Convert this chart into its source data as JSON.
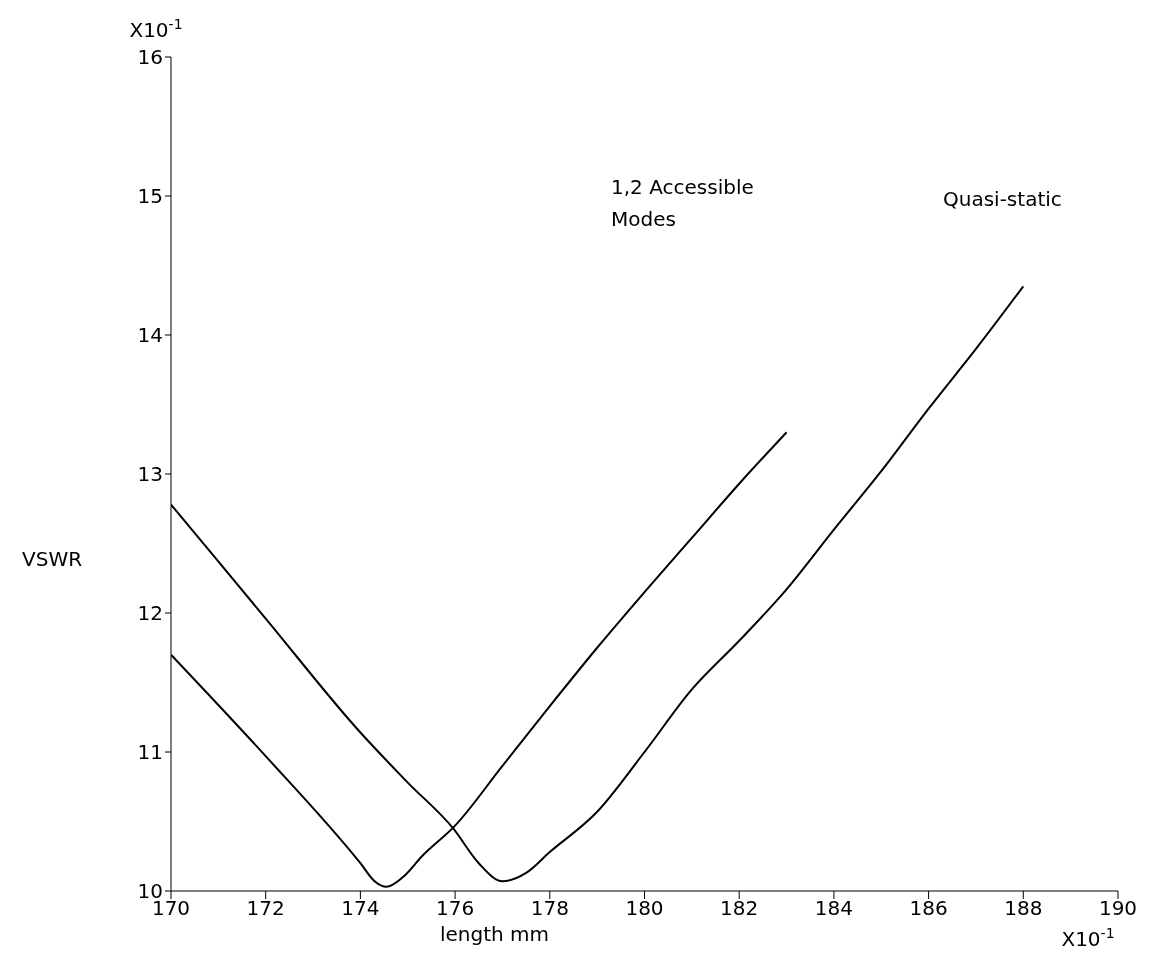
{
  "chart_data": {
    "type": "line",
    "xlabel": "length mm",
    "ylabel": "VSWR",
    "annotations": [
      "X10$^{-1}$",
      "X10$^{-1}$",
      "1,2 Accessible Modes",
      "Quasi-static"
    ],
    "xlim": [
      170,
      190
    ],
    "xticks": [
      170,
      172,
      174,
      176,
      178,
      180,
      182,
      184,
      186,
      188,
      190
    ],
    "ylim": [
      10,
      16
    ],
    "yticks": [
      10,
      11,
      12,
      13,
      14,
      15,
      16
    ],
    "grid": false,
    "legend": false,
    "marker": "none",
    "line_style": "solid",
    "series": [
      {
        "color": "#000000",
        "x": [
          170,
          172,
          174,
          174.3,
          174.55,
          174.9,
          175.3,
          176,
          177,
          178,
          179,
          180,
          181,
          182,
          183
        ],
        "values": [
          11.7,
          10.97,
          10.2,
          10.07,
          10.03,
          10.1,
          10.25,
          10.47,
          10.9,
          11.33,
          11.75,
          12.15,
          12.54,
          12.93,
          13.3
        ]
      },
      {
        "color": "#000000",
        "x": [
          170,
          172,
          174,
          175,
          175.96,
          176.5,
          177,
          177.5,
          178,
          179,
          180,
          181,
          182,
          183,
          184,
          185,
          186,
          187,
          188
        ],
        "values": [
          12.78,
          11.96,
          11.14,
          10.78,
          10.45,
          10.2,
          10.07,
          10.13,
          10.28,
          10.57,
          11.0,
          11.45,
          11.8,
          12.17,
          12.6,
          13.02,
          13.47,
          13.9,
          14.35
        ]
      }
    ]
  }
}
